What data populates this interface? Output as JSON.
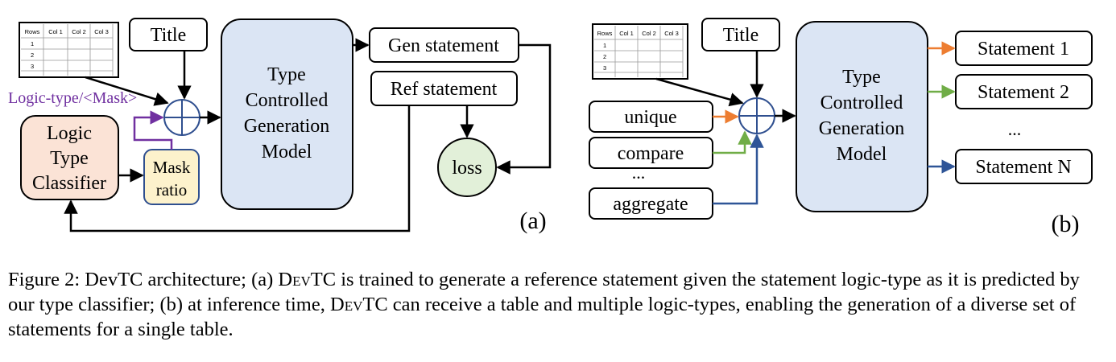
{
  "panel_a": {
    "table": {
      "headers": [
        "Rows",
        "Col 1",
        "Col 2",
        "Col 3"
      ],
      "rows": [
        "1",
        "2",
        "3"
      ]
    },
    "title_label": "Title",
    "mask_annotation": "Logic-type/<Mask>",
    "classifier_lines": [
      "Logic",
      "Type",
      "Classifier"
    ],
    "mask_ratio_lines": [
      "Mask",
      "ratio"
    ],
    "model_lines": [
      "Type",
      "Controlled",
      "Generation",
      "Model"
    ],
    "gen_statement": "Gen statement",
    "ref_statement": "Ref statement",
    "loss": "loss",
    "panel_label": "(a)"
  },
  "panel_b": {
    "table": {
      "headers": [
        "Rows",
        "Col 1",
        "Col 2",
        "Col 3"
      ],
      "rows": [
        "1",
        "2",
        "3"
      ]
    },
    "title_label": "Title",
    "logic_types": [
      "unique",
      "compare",
      "aggregate"
    ],
    "logic_ellipsis": "...",
    "model_lines": [
      "Type",
      "Controlled",
      "Generation",
      "Model"
    ],
    "statements": [
      "Statement 1",
      "Statement 2",
      "Statement N"
    ],
    "statement_ellipsis": "...",
    "panel_label": "(b)"
  },
  "caption": {
    "prefix": "Figure 2: DevTC architecture; (a) ",
    "name1": "DevTC",
    "middle": " is trained to generate a reference statement given the statement logic-type as it is predicted by our type classifier; (b) at inference time, ",
    "name2": "DevTC",
    "suffix": " can receive a table and multiple logic-types, enabling the generation of a diverse set of statements for a single table."
  },
  "colors": {
    "classifier_fill": "#fbe3d6",
    "mask_fill": "#fdf2cc",
    "model_fill": "#dbe5f4",
    "loss_fill": "#e2f0d9",
    "purple": "#7030a0",
    "orange": "#ed7d31",
    "green": "#70ad47",
    "blue": "#2f5597",
    "node_stroke": "#2f4f8f"
  }
}
